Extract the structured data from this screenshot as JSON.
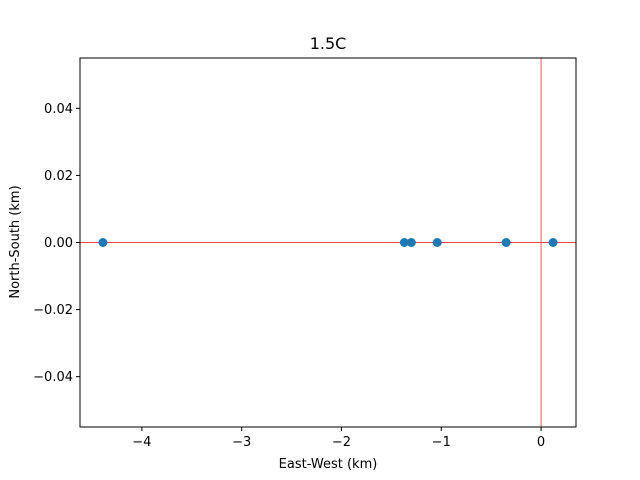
{
  "chart_data": {
    "type": "scatter",
    "title": "1.5C",
    "xlabel": "East-West (km)",
    "ylabel": "North-South (km)",
    "xlim": [
      -4.62,
      0.35
    ],
    "ylim": [
      -0.055,
      0.055
    ],
    "x_ticks": [
      -4,
      -3,
      -2,
      -1,
      0
    ],
    "x_tick_labels": [
      "−4",
      "−3",
      "−2",
      "−1",
      "0"
    ],
    "y_ticks": [
      -0.04,
      -0.02,
      0.0,
      0.02,
      0.04
    ],
    "y_tick_labels": [
      "−0.04",
      "−0.02",
      "0.00",
      "0.02",
      "0.04"
    ],
    "grid": false,
    "series": [
      {
        "x": [
          -4.39,
          -1.37,
          -1.3,
          -1.04,
          -0.35,
          0.12
        ],
        "y": [
          0,
          0,
          0,
          0,
          0,
          0
        ],
        "color": "#1f77b4"
      }
    ],
    "reference_lines": {
      "horizontal_y": 0,
      "vertical_x": 0,
      "color": "#e8474a"
    }
  }
}
